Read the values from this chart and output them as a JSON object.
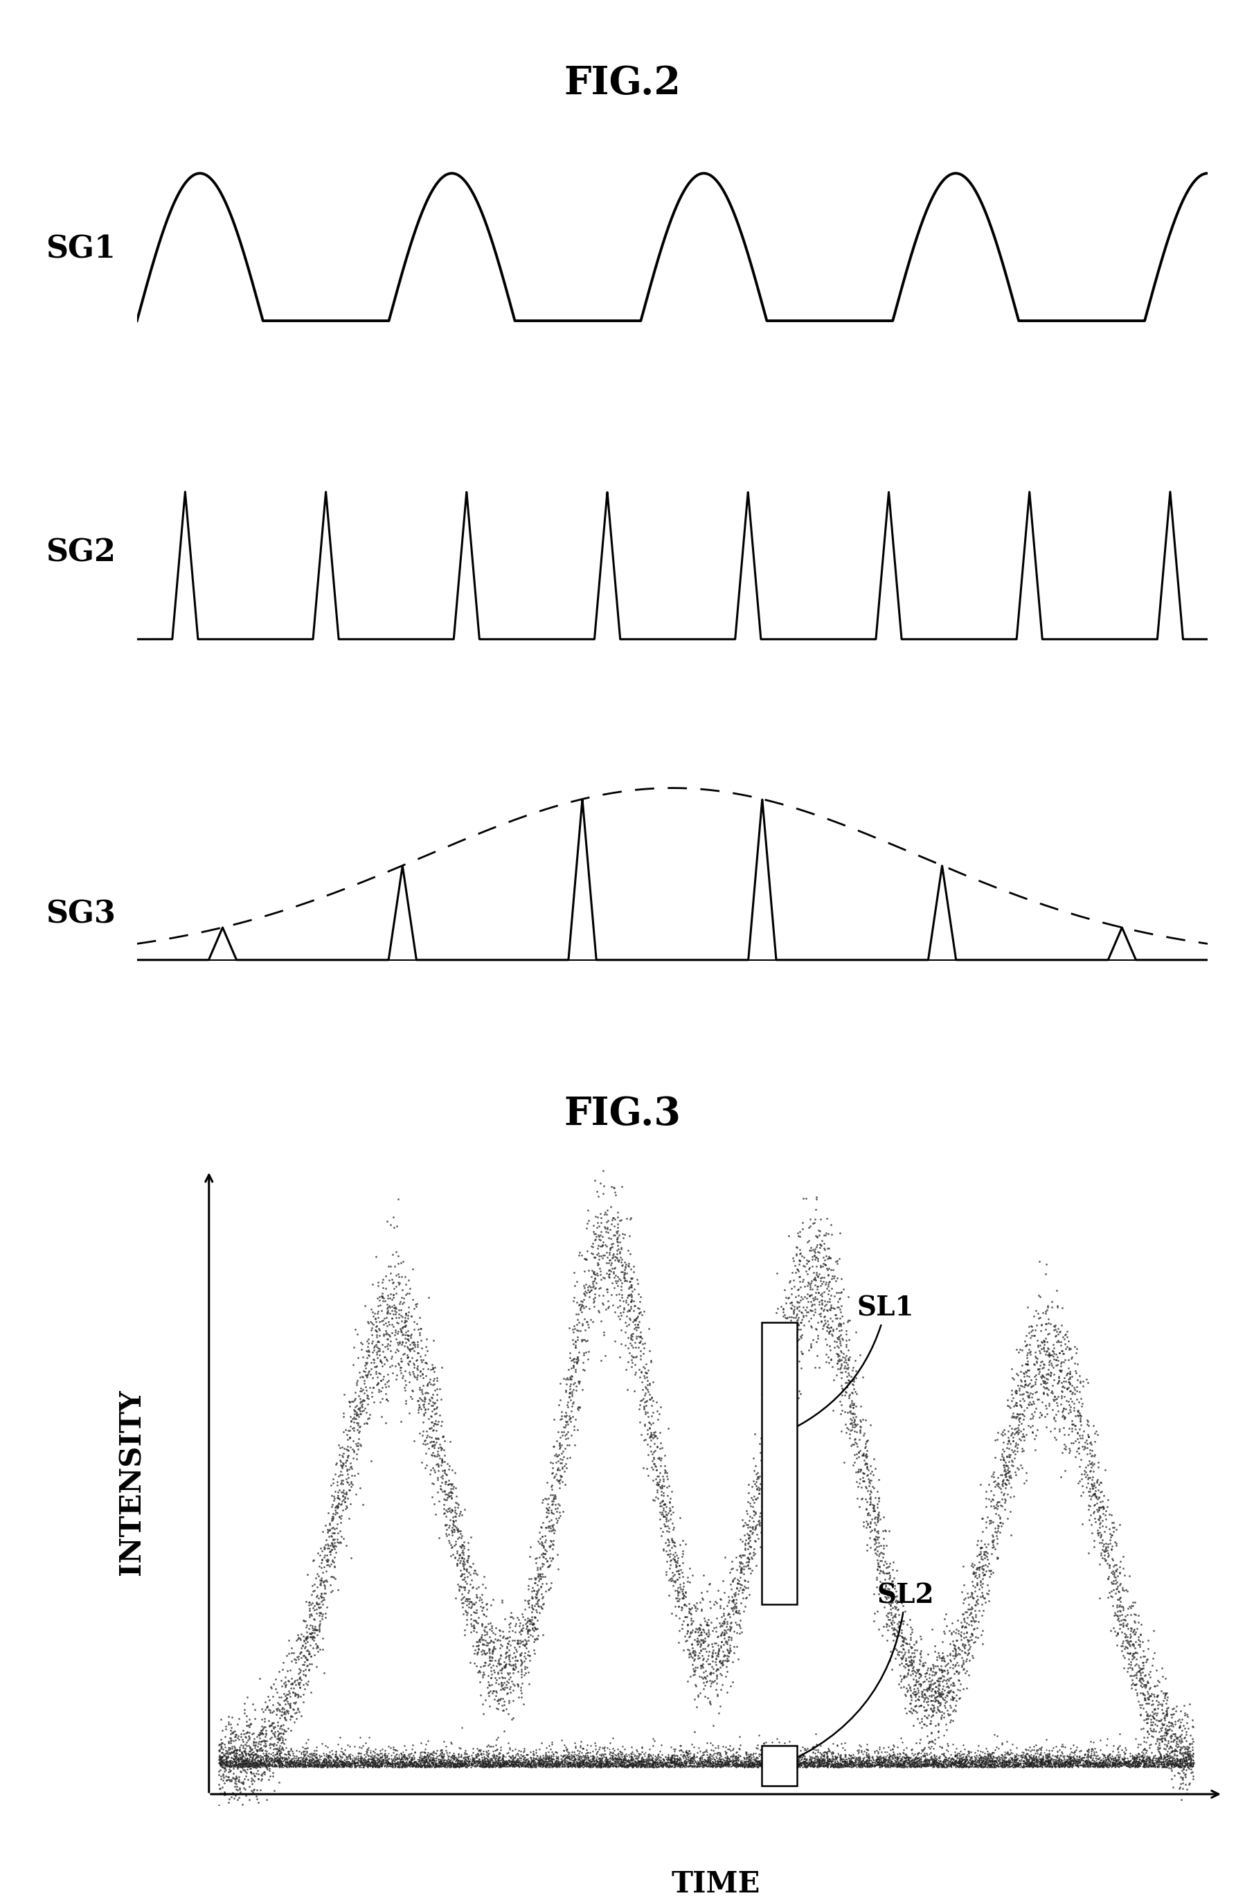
{
  "fig2_title": "FIG.2",
  "fig3_title": "FIG.3",
  "sg1_label": "SG1",
  "sg2_label": "SG2",
  "sg3_label": "SG3",
  "sl1_label": "SL1",
  "sl2_label": "SL2",
  "intensity_label": "INTENSITY",
  "time_label": "TIME",
  "bg_color": "#ffffff",
  "line_color": "#000000",
  "dot_color": "#222222",
  "title_fontsize": 40,
  "label_fontsize": 30,
  "sg_label_fontsize": 32
}
